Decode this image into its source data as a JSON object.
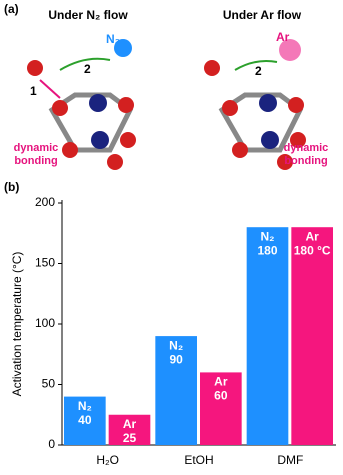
{
  "panel_labels": [
    "(a)",
    "(b)"
  ],
  "panel_a": {
    "left_title": "Under N₂ flow",
    "right_title": "Under Ar flow",
    "left_gas": "N₂",
    "right_gas": "Ar",
    "step_1": "1",
    "step_2": "2",
    "dynamic_bonding": [
      "dynamic",
      "bonding"
    ]
  },
  "chart_data": {
    "type": "bar",
    "y_label": "Activation temperature (°C)",
    "categories": [
      "H₂O",
      "EtOH",
      "DMF"
    ],
    "series": [
      {
        "name": "N₂",
        "color": "#1e90ff",
        "values": [
          40,
          90,
          180
        ]
      },
      {
        "name": "Ar",
        "color": "#f5167e",
        "values": [
          25,
          60,
          180
        ],
        "value_labels": [
          "25",
          "60",
          "180 °C"
        ]
      }
    ],
    "ylim": [
      0,
      200
    ],
    "yticks": [
      0,
      50,
      100,
      150,
      200
    ]
  }
}
